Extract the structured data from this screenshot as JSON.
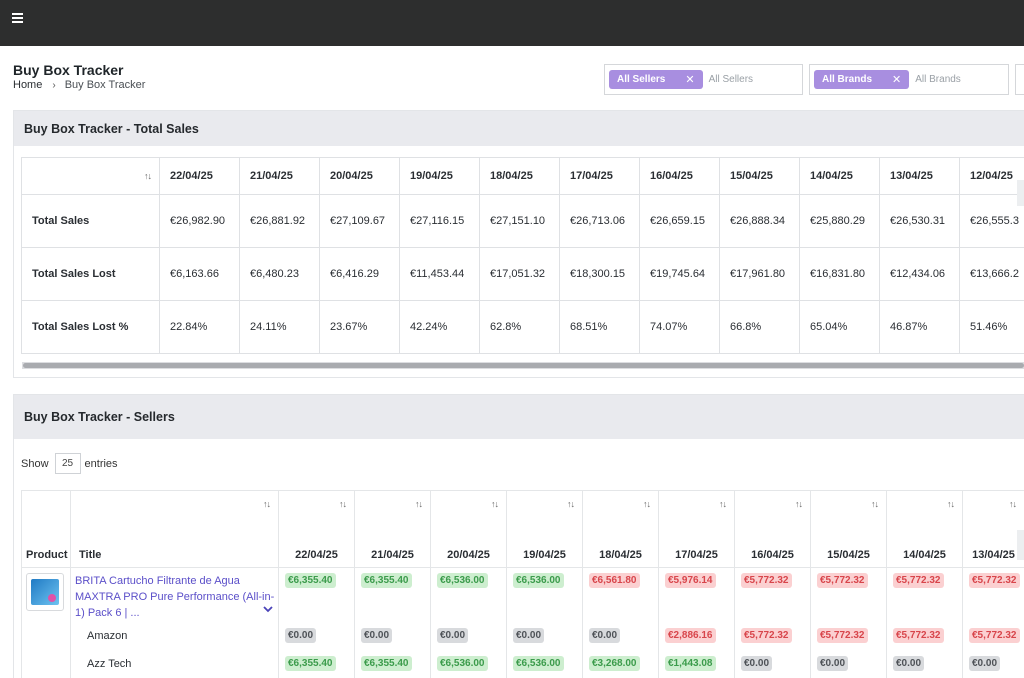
{
  "header": {
    "menu_icon": "hamburger-icon"
  },
  "page": {
    "title": "Buy Box Tracker",
    "breadcrumb": {
      "home": "Home",
      "current": "Buy Box Tracker"
    }
  },
  "filters": [
    {
      "chip": "All Sellers",
      "placeholder": "All Sellers"
    },
    {
      "chip": "All Brands",
      "placeholder": "All Brands"
    }
  ],
  "total_sales_card": {
    "title": "Buy Box Tracker - Total Sales",
    "dates": [
      "22/04/25",
      "21/04/25",
      "20/04/25",
      "19/04/25",
      "18/04/25",
      "17/04/25",
      "16/04/25",
      "15/04/25",
      "14/04/25",
      "13/04/25",
      "12/04/25"
    ],
    "rows": [
      {
        "label": "Total Sales",
        "values": [
          "€26,982.90",
          "€26,881.92",
          "€27,109.67",
          "€27,116.15",
          "€27,151.10",
          "€26,713.06",
          "€26,659.15",
          "€26,888.34",
          "€25,880.29",
          "€26,530.31",
          "€26,555.3"
        ]
      },
      {
        "label": "Total Sales Lost",
        "values": [
          "€6,163.66",
          "€6,480.23",
          "€6,416.29",
          "€11,453.44",
          "€17,051.32",
          "€18,300.15",
          "€19,745.64",
          "€17,961.80",
          "€16,831.80",
          "€12,434.06",
          "€13,666.2"
        ]
      },
      {
        "label": "Total Sales Lost %",
        "values": [
          "22.84%",
          "24.11%",
          "23.67%",
          "42.24%",
          "62.8%",
          "68.51%",
          "74.07%",
          "66.8%",
          "65.04%",
          "46.87%",
          "51.46%"
        ]
      }
    ]
  },
  "sellers_card": {
    "title": "Buy Box Tracker - Sellers",
    "show_label": "Show",
    "entries_value": "25",
    "entries_label": "entries",
    "columns": {
      "product": "Product",
      "title": "Title"
    },
    "dates": [
      "22/04/25",
      "21/04/25",
      "20/04/25",
      "19/04/25",
      "18/04/25",
      "17/04/25",
      "16/04/25",
      "15/04/25",
      "14/04/25",
      "13/04/25"
    ],
    "product": {
      "title": "BRITA Cartucho Filtrante de Agua MAXTRA PRO Pure Performance (All-in-1) Pack 6 | ...",
      "values": [
        {
          "v": "€6,355.40",
          "s": "g"
        },
        {
          "v": "€6,355.40",
          "s": "g"
        },
        {
          "v": "€6,536.00",
          "s": "g"
        },
        {
          "v": "€6,536.00",
          "s": "g"
        },
        {
          "v": "€6,561.80",
          "s": "r"
        },
        {
          "v": "€5,976.14",
          "s": "r"
        },
        {
          "v": "€5,772.32",
          "s": "r"
        },
        {
          "v": "€5,772.32",
          "s": "r"
        },
        {
          "v": "€5,772.32",
          "s": "r"
        },
        {
          "v": "€5,772.32",
          "s": "r"
        }
      ]
    },
    "sellers": [
      {
        "name": "Amazon",
        "values": [
          {
            "v": "€0.00",
            "s": "z"
          },
          {
            "v": "€0.00",
            "s": "z"
          },
          {
            "v": "€0.00",
            "s": "z"
          },
          {
            "v": "€0.00",
            "s": "z"
          },
          {
            "v": "€0.00",
            "s": "z"
          },
          {
            "v": "€2,886.16",
            "s": "r"
          },
          {
            "v": "€5,772.32",
            "s": "r"
          },
          {
            "v": "€5,772.32",
            "s": "r"
          },
          {
            "v": "€5,772.32",
            "s": "r"
          },
          {
            "v": "€5,772.32",
            "s": "r"
          }
        ]
      },
      {
        "name": "Azz Tech",
        "values": [
          {
            "v": "€6,355.40",
            "s": "g"
          },
          {
            "v": "€6,355.40",
            "s": "g"
          },
          {
            "v": "€6,536.00",
            "s": "g"
          },
          {
            "v": "€6,536.00",
            "s": "g"
          },
          {
            "v": "€3,268.00",
            "s": "g"
          },
          {
            "v": "€1,443.08",
            "s": "g"
          },
          {
            "v": "€0.00",
            "s": "z"
          },
          {
            "v": "€0.00",
            "s": "z"
          },
          {
            "v": "€0.00",
            "s": "z"
          },
          {
            "v": "€0.00",
            "s": "z"
          }
        ]
      }
    ]
  },
  "colors": {
    "topbar": "#2d2e2e",
    "chip": "#a88ee0",
    "link": "#5b4fc9",
    "positive": "#3b9b4b",
    "negative": "#d8454b"
  }
}
